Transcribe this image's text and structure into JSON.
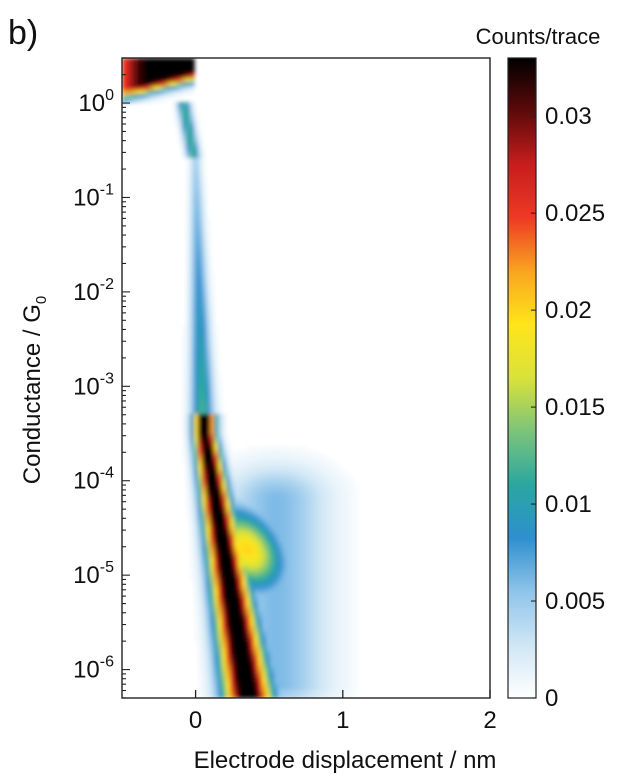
{
  "panel_label": "b)",
  "chart_data": {
    "type": "heatmap",
    "title": "",
    "xlabel": "Electrode displacement / nm",
    "ylabel": "Conductance / G",
    "ylabel_subscript": "0",
    "xlim": [
      -0.5,
      2.0
    ],
    "ylim": [
      5e-07,
      3
    ],
    "x_scale": "linear",
    "y_scale": "log",
    "x_ticks": [
      0,
      1,
      2
    ],
    "x_tick_labels": [
      "0",
      "1",
      "2"
    ],
    "y_ticks": [
      {
        "value": 1,
        "base": "10",
        "exp": "0"
      },
      {
        "value": 0.1,
        "base": "10",
        "exp": "-1"
      },
      {
        "value": 0.01,
        "base": "10",
        "exp": "-2"
      },
      {
        "value": 0.001,
        "base": "10",
        "exp": "-3"
      },
      {
        "value": 0.0001,
        "base": "10",
        "exp": "-4"
      },
      {
        "value": 1e-05,
        "base": "10",
        "exp": "-5"
      },
      {
        "value": 1e-06,
        "base": "10",
        "exp": "-6"
      }
    ],
    "colorbar": {
      "label": "Counts/trace",
      "range": [
        0,
        0.033
      ],
      "ticks": [
        0,
        0.005,
        0.01,
        0.015,
        0.02,
        0.025,
        0.03
      ],
      "tick_labels": [
        "0",
        "0.005",
        "0.01",
        "0.015",
        "0.02",
        "0.025",
        "0.03"
      ],
      "colormap": [
        "#ffffff",
        "#cfe6f5",
        "#8fc4ea",
        "#2e8fcf",
        "#2aa7a0",
        "#7cc47a",
        "#d9e23a",
        "#ffe51a",
        "#f9a51f",
        "#ee3a24",
        "#c81d1d",
        "#5e0a0a",
        "#000000"
      ]
    },
    "features": [
      {
        "name": "metal contact plateau",
        "x_range": [
          -0.5,
          0.0
        ],
        "log10_g_range": [
          0.0,
          0.48
        ],
        "peak_counts": 0.033
      },
      {
        "name": "rupture step",
        "x": 0.0,
        "log10_g_range": [
          -0.6,
          0.0
        ],
        "peak_counts": 0.012
      },
      {
        "name": "tunnelling slope",
        "x_range": [
          0.0,
          0.05
        ],
        "log10_g_range": [
          -3.5,
          -0.6
        ],
        "peak_counts": 0.008
      },
      {
        "name": "main ridge",
        "x_range": [
          0.0,
          0.45
        ],
        "log10_g_range": [
          -6.3,
          -3.5
        ],
        "peak_counts": 0.033
      },
      {
        "name": "molecular plateau",
        "x_range": [
          0.15,
          0.65
        ],
        "log10_g_range": [
          -5.0,
          -4.4
        ],
        "peak_counts": 0.02
      },
      {
        "name": "diffuse tail",
        "x_range": [
          0.3,
          1.2
        ],
        "log10_g_range": [
          -6.3,
          -4.2
        ],
        "peak_counts": 0.006
      }
    ]
  }
}
